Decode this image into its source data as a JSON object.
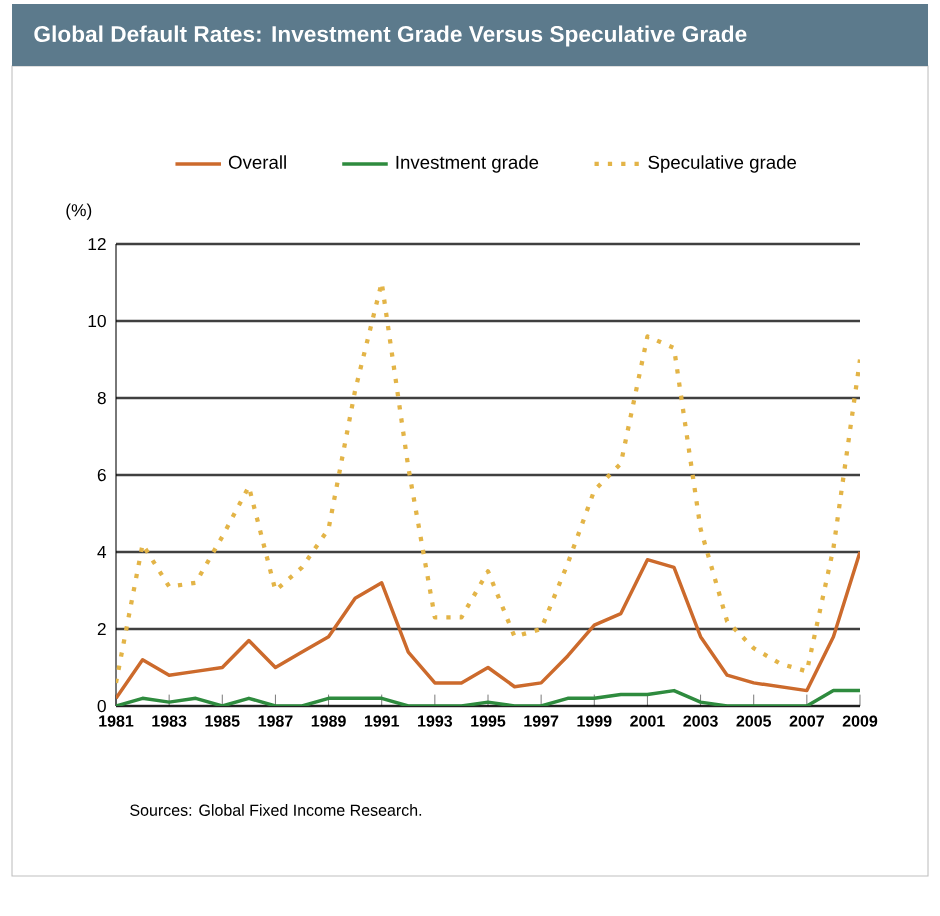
{
  "chart_data": {
    "type": "line",
    "title": "Global Default Rates: Investment Grade Versus Speculative Grade",
    "ylabel": "(%)",
    "x": [
      1981,
      1982,
      1983,
      1984,
      1985,
      1986,
      1987,
      1988,
      1989,
      1990,
      1991,
      1992,
      1993,
      1994,
      1995,
      1996,
      1997,
      1998,
      1999,
      2000,
      2001,
      2002,
      2003,
      2004,
      2005,
      2006,
      2007,
      2008,
      2009
    ],
    "series": [
      {
        "name": "Overall",
        "color": "#cc6a2c",
        "line_style": "solid",
        "values": [
          0.2,
          1.2,
          0.8,
          0.9,
          1.0,
          1.7,
          1.0,
          1.4,
          1.8,
          2.8,
          3.2,
          1.4,
          0.6,
          0.6,
          1.0,
          0.5,
          0.6,
          1.3,
          2.1,
          2.4,
          3.8,
          3.6,
          1.8,
          0.8,
          0.6,
          0.5,
          0.4,
          1.8,
          4.0
        ]
      },
      {
        "name": "Investment grade",
        "color": "#2e8b3e",
        "line_style": "solid",
        "values": [
          0.0,
          0.2,
          0.1,
          0.2,
          0.0,
          0.2,
          0.0,
          0.0,
          0.2,
          0.2,
          0.2,
          0.0,
          0.0,
          0.0,
          0.1,
          0.0,
          0.0,
          0.2,
          0.2,
          0.3,
          0.3,
          0.4,
          0.1,
          0.0,
          0.0,
          0.0,
          0.0,
          0.4,
          0.4
        ]
      },
      {
        "name": "Speculative grade",
        "color": "#e3b447",
        "line_style": "dotted",
        "values": [
          0.6,
          4.2,
          3.1,
          3.2,
          4.4,
          5.7,
          3.0,
          3.6,
          4.6,
          8.2,
          11.0,
          6.2,
          2.3,
          2.3,
          3.5,
          1.8,
          2.0,
          3.7,
          5.6,
          6.3,
          9.6,
          9.3,
          4.6,
          2.2,
          1.5,
          1.1,
          0.9,
          4.1,
          9.0
        ]
      }
    ],
    "xlim": [
      1981,
      2009
    ],
    "xticks": [
      1981,
      1983,
      1985,
      1987,
      1989,
      1991,
      1993,
      1995,
      1997,
      1999,
      2001,
      2003,
      2005,
      2007,
      2009
    ],
    "ylim": [
      0,
      12
    ],
    "yticks": [
      0,
      2,
      4,
      6,
      8,
      10,
      12
    ],
    "grid": "y",
    "legend": "top",
    "marker": "none",
    "annotations": [
      "Sources: Global Fixed Income Research."
    ]
  }
}
